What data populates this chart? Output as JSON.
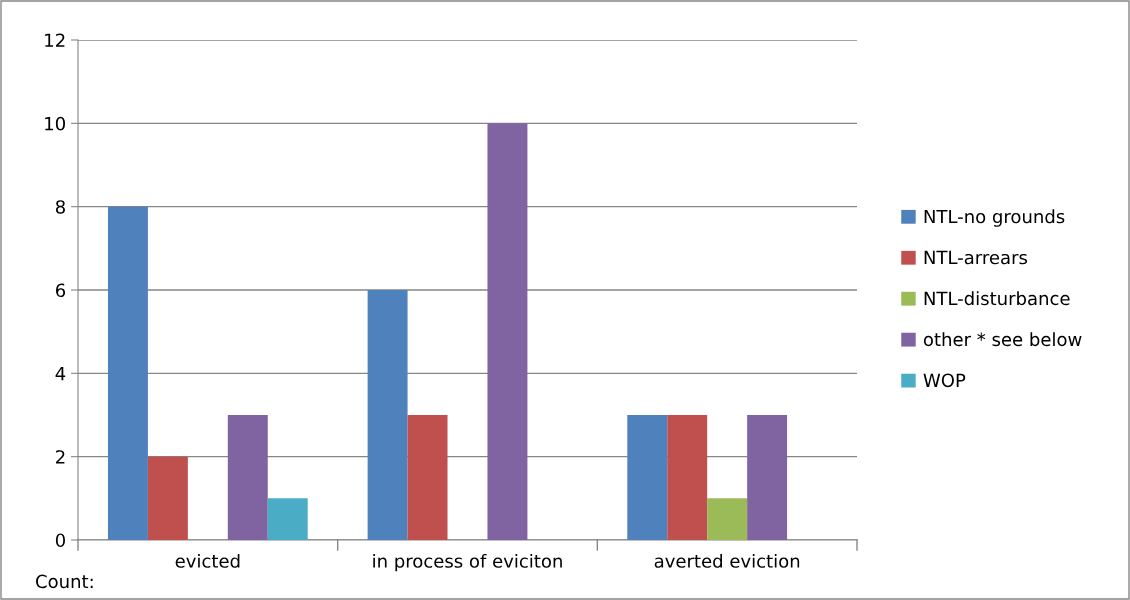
{
  "chart_data": {
    "type": "bar",
    "categories": [
      "evicted",
      "in process of eviciton",
      "averted eviction"
    ],
    "series": [
      {
        "name": "NTL-no grounds",
        "color": "#4f81bd",
        "values": [
          8,
          6,
          3
        ]
      },
      {
        "name": "NTL-arrears",
        "color": "#c0504d",
        "values": [
          2,
          3,
          3
        ]
      },
      {
        "name": "NTL-disturbance",
        "color": "#9bbb59",
        "values": [
          0,
          0,
          1
        ]
      },
      {
        "name": "other * see below",
        "color": "#8064a2",
        "values": [
          3,
          10,
          3
        ]
      },
      {
        "name": "WOP",
        "color": "#4bacc6",
        "values": [
          1,
          0,
          0
        ]
      }
    ],
    "ylim": [
      0,
      12
    ],
    "yticks": [
      0,
      2,
      4,
      6,
      8,
      10,
      12
    ],
    "grid": "y",
    "legend": "right",
    "annotations": [
      "Count:"
    ]
  }
}
